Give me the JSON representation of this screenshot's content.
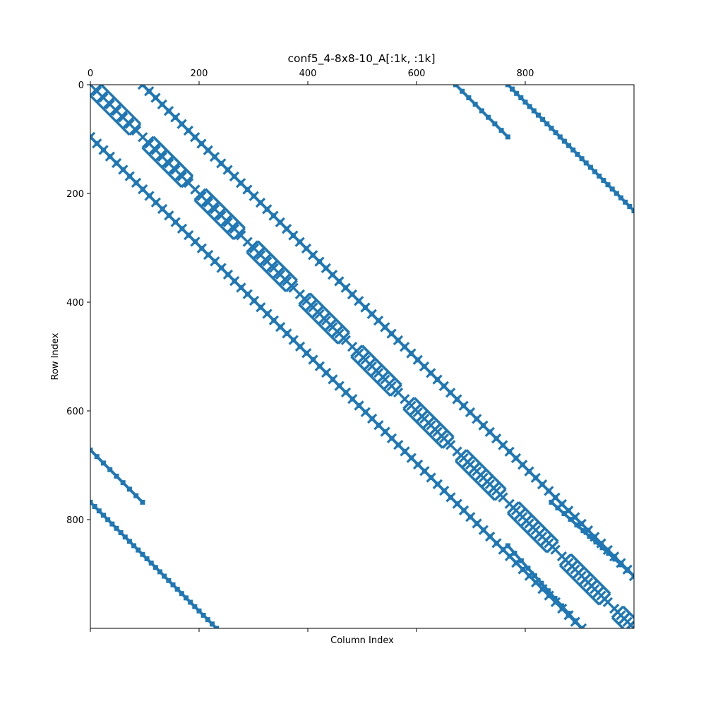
{
  "chart_data": {
    "type": "scatter",
    "title": "conf5_4-8x8-10_A[:1k, :1k]",
    "xlabel": "Column Index",
    "ylabel": "Row Index",
    "xlim": [
      0,
      1000
    ],
    "ylim": [
      1000,
      0
    ],
    "x_ticks": [
      0,
      200,
      400,
      600,
      800
    ],
    "y_ticks": [
      0,
      200,
      400,
      600,
      800
    ],
    "x_ticks_position": "top",
    "y_axis_inverted": true,
    "grid": false,
    "legend": "none",
    "marker_color": "#1f77b4",
    "structure": "sparsity pattern (spy plot) of the nonzero entries of the matrix A[:1k, :1k]",
    "bands": [
      {
        "name": "main-diagonal-lattice",
        "from": [
          0,
          0
        ],
        "to": [
          1000,
          1000
        ],
        "pattern": "lattice",
        "hop": 12
      },
      {
        "name": "upper-off-diagonal-lattice",
        "from": [
          96,
          0
        ],
        "to": [
          1000,
          904
        ],
        "pattern": "lattice",
        "hop": 12
      },
      {
        "name": "upper-off-diagonal-line",
        "from": [
          96,
          0
        ],
        "to": [
          1000,
          904
        ],
        "pattern": "line",
        "hop": 12
      },
      {
        "name": "lower-off-diagonal-line",
        "from": [
          0,
          96
        ],
        "to": [
          904,
          1000
        ],
        "pattern": "line",
        "hop": 12
      },
      {
        "name": "lower-off-diagonal-lattice",
        "from": [
          0,
          96
        ],
        "to": [
          904,
          1000
        ],
        "pattern": "lattice",
        "hop": 12
      },
      {
        "name": "upper-right-corner-line",
        "from": [
          672,
          0
        ],
        "to": [
          768,
          96
        ],
        "pattern": "line",
        "hop": 12
      },
      {
        "name": "upper-right-corner-lattice",
        "from": [
          768,
          0
        ],
        "to": [
          1000,
          232
        ],
        "pattern": "line",
        "hop": 8
      },
      {
        "name": "lower-left-corner-line",
        "from": [
          0,
          672
        ],
        "to": [
          96,
          768
        ],
        "pattern": "line",
        "hop": 12
      },
      {
        "name": "lower-left-corner-lattice",
        "from": [
          0,
          768
        ],
        "to": [
          232,
          1000
        ],
        "pattern": "line",
        "hop": 8
      },
      {
        "name": "block-8-upper-line",
        "from": [
          848,
          768
        ],
        "to": [
          1000,
          904
        ],
        "pattern": "line",
        "hop": 12
      },
      {
        "name": "block-8-lower-line",
        "from": [
          768,
          848
        ],
        "to": [
          904,
          1000
        ],
        "pattern": "line",
        "hop": 12
      }
    ]
  }
}
